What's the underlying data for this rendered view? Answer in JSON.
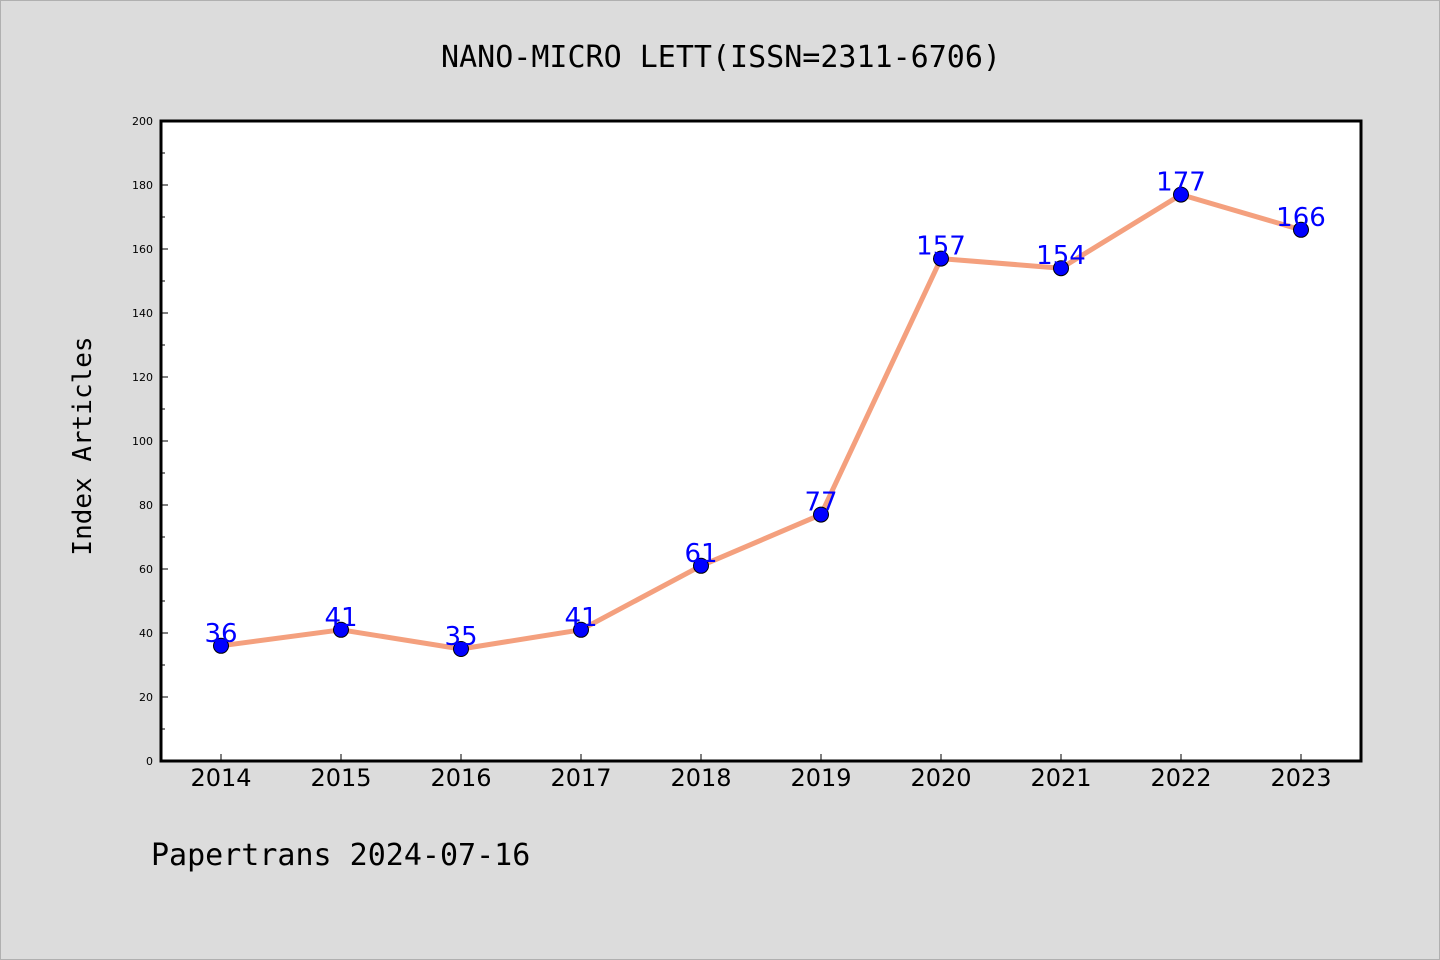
{
  "chart_data": {
    "type": "line",
    "title": "NANO-MICRO LETT(ISSN=2311-6706)",
    "xlabel": "",
    "ylabel": "Index Articles",
    "categories": [
      "2014",
      "2015",
      "2016",
      "2017",
      "2018",
      "2019",
      "2020",
      "2021",
      "2022",
      "2023"
    ],
    "series": [
      {
        "values": [
          36,
          41,
          35,
          41,
          61,
          77,
          157,
          154,
          177,
          166
        ],
        "line_color": "#f4a07e",
        "marker_color": "#0000ff"
      }
    ],
    "data_labels": [
      "36",
      "41",
      "35",
      "41",
      "61",
      "77",
      "157",
      "154",
      "177",
      "166"
    ],
    "label_color": "#0000ff",
    "ylim": [
      0,
      200
    ],
    "yticks": [
      "0",
      "20",
      "40",
      "60",
      "80",
      "100",
      "120",
      "140",
      "160",
      "180",
      "200"
    ],
    "grid": false,
    "legend": "none"
  },
  "footer": "Papertrans 2024-07-16",
  "colors": {
    "background": "#dcdcdc",
    "plot_background": "#ffffff",
    "axis": "#000000"
  }
}
